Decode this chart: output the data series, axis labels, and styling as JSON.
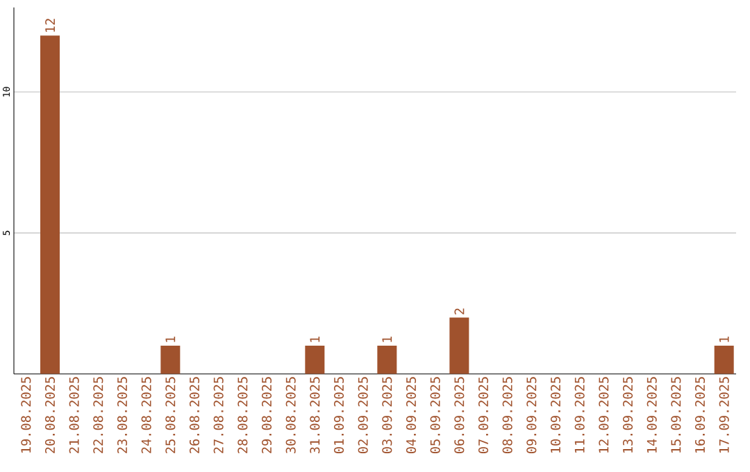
{
  "chart_data": {
    "type": "bar",
    "categories": [
      "19.08.2025",
      "20.08.2025",
      "21.08.2025",
      "22.08.2025",
      "23.08.2025",
      "24.08.2025",
      "25.08.2025",
      "26.08.2025",
      "27.08.2025",
      "28.08.2025",
      "29.08.2025",
      "30.08.2025",
      "31.08.2025",
      "01.09.2025",
      "02.09.2025",
      "03.09.2025",
      "04.09.2025",
      "05.09.2025",
      "06.09.2025",
      "07.09.2025",
      "08.09.2025",
      "09.09.2025",
      "10.09.2025",
      "11.09.2025",
      "12.09.2025",
      "13.09.2025",
      "14.09.2025",
      "15.09.2025",
      "16.09.2025",
      "17.09.2025"
    ],
    "values": [
      0,
      12,
      0,
      0,
      0,
      0,
      1,
      0,
      0,
      0,
      0,
      0,
      1,
      0,
      0,
      1,
      0,
      0,
      2,
      0,
      0,
      0,
      0,
      0,
      0,
      0,
      0,
      0,
      0,
      1
    ],
    "value_labels": [
      null,
      "12",
      null,
      null,
      null,
      null,
      "1",
      null,
      null,
      null,
      null,
      null,
      "1",
      null,
      null,
      "1",
      null,
      null,
      "2",
      null,
      null,
      null,
      null,
      null,
      null,
      null,
      null,
      null,
      null,
      "1"
    ],
    "color": "#a0522d",
    "ylim": [
      0,
      13
    ],
    "yticks": [
      5,
      10
    ],
    "grid": "y"
  }
}
